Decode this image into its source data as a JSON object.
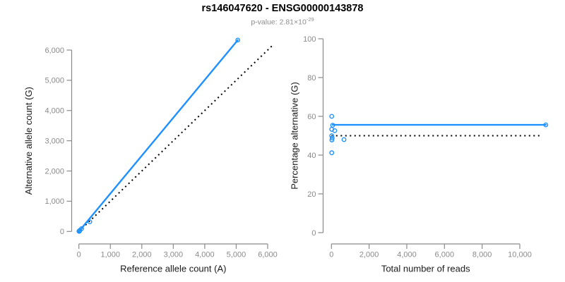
{
  "header": {
    "title": "rs146047620 - ENSG00000143878",
    "subtitle_base": "p-value: 2.81×10",
    "subtitle_exponent": "-29"
  },
  "colors": {
    "point_blue": "#1E90FF",
    "line_blue": "#1E90FF",
    "dotted_black": "#000000",
    "axis_gray": "#8a8a8a",
    "tick_label_gray": "#8a8a8a",
    "axis_title_color": "#1a1a1a"
  },
  "chart_data": [
    {
      "id": "left-panel",
      "type": "scatter",
      "title": "",
      "xlabel": "Reference allele count (A)",
      "ylabel": "Alternative allele count (G)",
      "xlim": [
        0,
        6200
      ],
      "ylim": [
        0,
        6500
      ],
      "grid": false,
      "legend": "none",
      "xticks": [
        {
          "v": 0,
          "label": "0"
        },
        {
          "v": 1000,
          "label": "1,000"
        },
        {
          "v": 2000,
          "label": "2,000"
        },
        {
          "v": 3000,
          "label": "3,000"
        },
        {
          "v": 4000,
          "label": "4,000"
        },
        {
          "v": 5000,
          "label": "5,000"
        },
        {
          "v": 6000,
          "label": "6,000"
        }
      ],
      "yticks": [
        {
          "v": 0,
          "label": "0"
        },
        {
          "v": 1000,
          "label": "1,000"
        },
        {
          "v": 2000,
          "label": "2,000"
        },
        {
          "v": 3000,
          "label": "3,000"
        },
        {
          "v": 4000,
          "label": "4,000"
        },
        {
          "v": 5000,
          "label": "5,000"
        },
        {
          "v": 6000,
          "label": "6,000"
        }
      ],
      "points": [
        [
          6,
          9
        ],
        [
          8,
          8
        ],
        [
          7,
          8
        ],
        [
          10,
          7
        ],
        [
          12,
          11
        ],
        [
          21,
          20
        ],
        [
          29,
          36
        ],
        [
          83,
          92
        ],
        [
          346,
          319
        ],
        [
          5050,
          6330
        ]
      ],
      "lines": [
        {
          "name": "identity",
          "style": "dotted",
          "color": "black",
          "x1": 0,
          "y1": 0,
          "x2": 6150,
          "y2": 6150
        },
        {
          "name": "fit",
          "style": "solid",
          "color": "blue",
          "x1": 0,
          "y1": 0,
          "x2": 5050,
          "y2": 6330
        }
      ]
    },
    {
      "id": "right-panel",
      "type": "scatter",
      "title": "",
      "xlabel": "Total number of reads",
      "ylabel": "Percentage alternative (G)",
      "xlim": [
        0,
        11500
      ],
      "ylim": [
        0,
        100
      ],
      "grid": false,
      "legend": "none",
      "xticks": [
        {
          "v": 0,
          "label": "0"
        },
        {
          "v": 2000,
          "label": "2,000"
        },
        {
          "v": 4000,
          "label": "4,000"
        },
        {
          "v": 6000,
          "label": "6,000"
        },
        {
          "v": 8000,
          "label": "8,000"
        },
        {
          "v": 10000,
          "label": "10,000"
        }
      ],
      "yticks": [
        {
          "v": 0,
          "label": "0"
        },
        {
          "v": 20,
          "label": "20"
        },
        {
          "v": 40,
          "label": "40"
        },
        {
          "v": 60,
          "label": "60"
        },
        {
          "v": 80,
          "label": "80"
        },
        {
          "v": 100,
          "label": "100"
        }
      ],
      "points": [
        [
          15,
          60.0
        ],
        [
          16,
          50.0
        ],
        [
          15,
          53.3
        ],
        [
          17,
          41.2
        ],
        [
          23,
          47.8
        ],
        [
          41,
          48.8
        ],
        [
          65,
          55.4
        ],
        [
          175,
          52.6
        ],
        [
          665,
          48.0
        ],
        [
          11380,
          55.6
        ]
      ],
      "lines": [
        {
          "name": "null-50pct",
          "style": "dotted",
          "color": "black",
          "x1": 0,
          "y1": 50,
          "x2": 11200,
          "y2": 50
        },
        {
          "name": "fit",
          "style": "solid",
          "color": "blue",
          "x1": 65,
          "y1": 55.6,
          "x2": 11380,
          "y2": 55.6
        }
      ]
    }
  ]
}
